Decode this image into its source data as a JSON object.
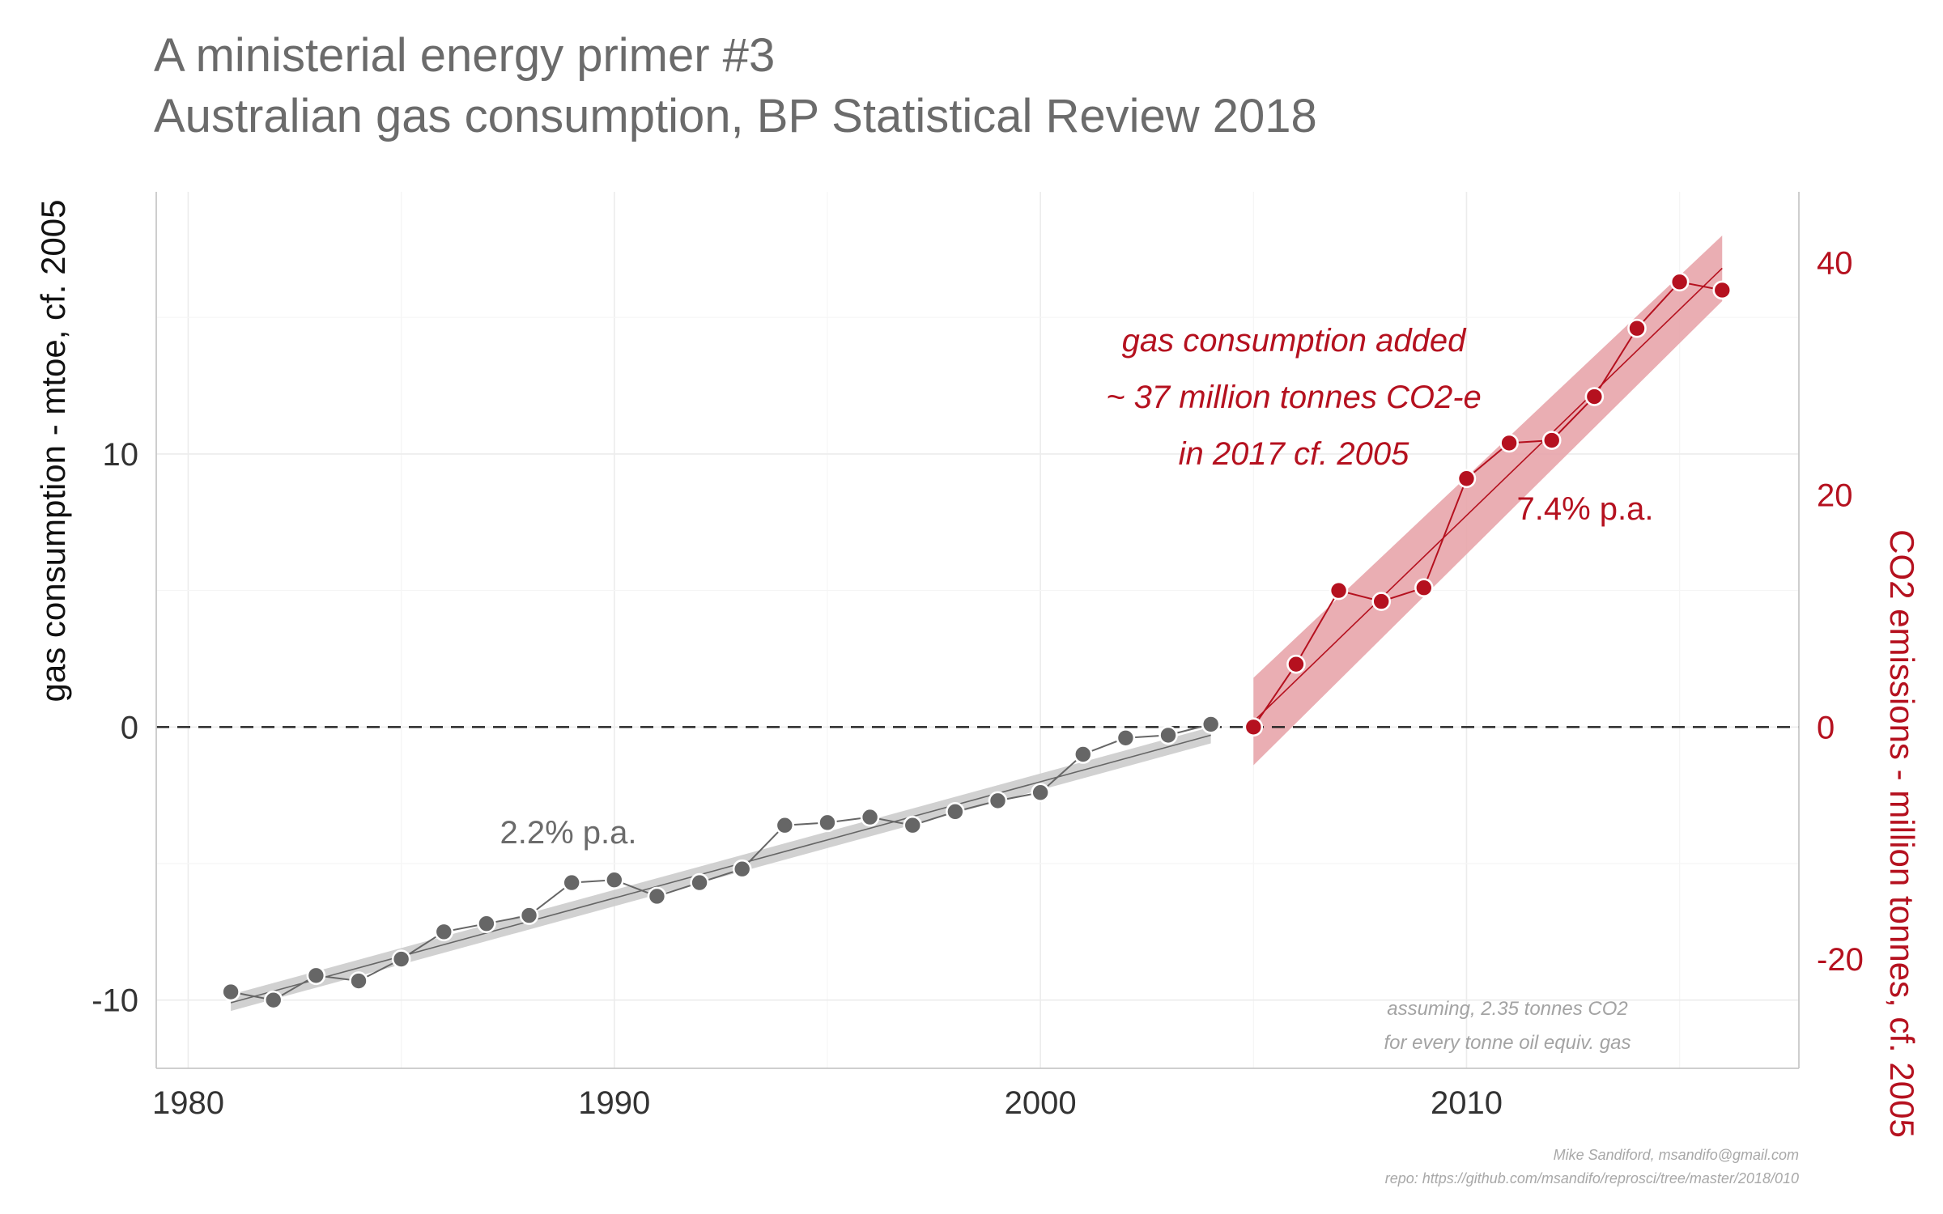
{
  "title_line1": "A ministerial energy primer #3",
  "title_line2": "Australian gas consumption, BP Statistical Review 2018",
  "chart_data": {
    "type": "scatter",
    "xlim": [
      1979.25,
      2017.8
    ],
    "ylim": [
      -12.5,
      19.6
    ],
    "y2lim": [
      -29.4,
      46.1
    ],
    "y2_per_y": 2.35,
    "x_ticks": [
      "1980",
      "1990",
      "2000",
      "2010"
    ],
    "x_tick_values": [
      1980,
      1990,
      2000,
      2010
    ],
    "y_ticks": [
      "-10",
      "0",
      "10"
    ],
    "y_tick_values": [
      -10,
      0,
      10
    ],
    "y2_ticks": [
      "-20",
      "0",
      "20",
      "40"
    ],
    "y2_tick_values": [
      -20,
      0,
      20,
      40
    ],
    "ylabel": "gas consumption - mtoe, cf. 2005",
    "y2label": "CO2 emissions - million tonnes, cf. 2005",
    "reference_line": 0,
    "grid": true,
    "colors": {
      "early": "#666666",
      "early_band": "#cccccc",
      "late": "#b5111f",
      "late_band": "#e8a5ab",
      "text": "#6b6b6b",
      "axis_text": "#333333"
    },
    "series": [
      {
        "key": "early",
        "x": [
          1981,
          1982,
          1983,
          1984,
          1985,
          1986,
          1987,
          1988,
          1989,
          1990,
          1991,
          1992,
          1993,
          1994,
          1995,
          1996,
          1997,
          1998,
          1999,
          2000,
          2001,
          2002,
          2003,
          2004
        ],
        "values": [
          -9.7,
          -10.0,
          -9.1,
          -9.3,
          -8.5,
          -7.5,
          -7.2,
          -6.9,
          -5.7,
          -5.6,
          -6.2,
          -5.7,
          -5.2,
          -3.6,
          -3.5,
          -3.3,
          -3.6,
          -3.1,
          -2.7,
          -2.4,
          -1.0,
          -0.4,
          -0.3,
          0.1
        ],
        "fit": {
          "x": [
            1981,
            2004
          ],
          "y": [
            -10.1,
            -0.3
          ],
          "band_half_width": 0.3
        }
      },
      {
        "key": "late",
        "x": [
          2005,
          2006,
          2007,
          2008,
          2009,
          2010,
          2011,
          2012,
          2013,
          2014,
          2015,
          2016
        ],
        "values": [
          0.0,
          2.3,
          5.0,
          4.6,
          5.1,
          9.1,
          10.4,
          10.5,
          12.1,
          14.6,
          16.3,
          16.0
        ],
        "fit": {
          "x": [
            2005,
            2016
          ],
          "y": [
            0.2,
            16.8
          ],
          "band_half_width_start": 1.6,
          "band_half_width_end": 1.2
        }
      }
    ],
    "annotations": {
      "red_line1": "gas consumption added",
      "red_line2": "~ 37 million tonnes CO2-e",
      "red_line3": "in 2017  cf. 2005",
      "rate_late": "7.4% p.a.",
      "rate_early": "2.2% p.a.",
      "note_line1": "assuming, 2.35 tonnes CO2",
      "note_line2": "for every  tonne oil equiv. gas"
    }
  },
  "credit_line1": "Mike Sandiford, msandifo@gmail.com",
  "credit_line2": "repo: https://github.com/msandifo/reprosci/tree/master/2018/010"
}
